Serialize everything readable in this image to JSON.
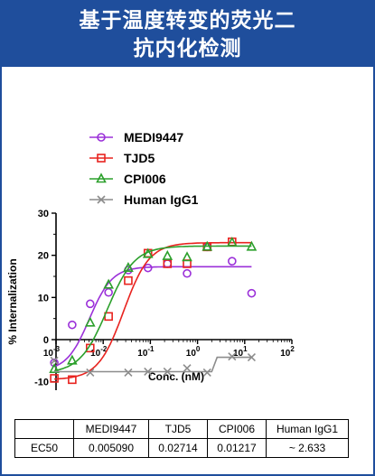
{
  "header": {
    "title_line1": "基于温度转变的荧光二",
    "title_line2": "抗内化检测"
  },
  "colors": {
    "header_bg": "#1f4e9c",
    "MEDI9447": "#9b30d9",
    "TJD5": "#e8231f",
    "CPI006": "#2ca02c",
    "Human IgG1": "#8c8c8c"
  },
  "chart_data": {
    "type": "scatter",
    "xscale": "log",
    "xlabel": "Conc. (nM)",
    "ylabel": "% Internalization",
    "xlim": [
      0.001,
      100
    ],
    "ylim": [
      -12,
      30
    ],
    "x_ticks": [
      {
        "value": 0.001,
        "base": "10",
        "exp": "-3"
      },
      {
        "value": 0.01,
        "base": "10",
        "exp": "-2"
      },
      {
        "value": 0.1,
        "base": "10",
        "exp": "-1"
      },
      {
        "value": 1,
        "base": "10",
        "exp": "0"
      },
      {
        "value": 10,
        "base": "10",
        "exp": "1"
      },
      {
        "value": 100,
        "base": "10",
        "exp": "2"
      }
    ],
    "y_ticks": [
      -10,
      0,
      10,
      20,
      30
    ],
    "legend_position": "top",
    "series": [
      {
        "name": "MEDI9447",
        "marker": "circle",
        "points": [
          [
            0.00092,
            -5.5
          ],
          [
            0.0022,
            3.5
          ],
          [
            0.0053,
            8.5
          ],
          [
            0.013,
            11.2
          ],
          [
            0.034,
            16.5
          ],
          [
            0.089,
            17
          ],
          [
            0.23,
            18
          ],
          [
            0.6,
            15.7
          ],
          [
            1.6,
            22
          ],
          [
            5.4,
            18.6
          ],
          [
            14,
            11
          ]
        ],
        "fit": {
          "bottom": -7.5,
          "top": 17.3,
          "ec50": 0.00509,
          "hill": 1.8
        }
      },
      {
        "name": "TJD5",
        "marker": "square",
        "points": [
          [
            0.00092,
            -9.2
          ],
          [
            0.0022,
            -9.5
          ],
          [
            0.0053,
            -2
          ],
          [
            0.013,
            5.5
          ],
          [
            0.034,
            14
          ],
          [
            0.089,
            20.5
          ],
          [
            0.23,
            18
          ],
          [
            0.6,
            18
          ],
          [
            1.6,
            22
          ],
          [
            5.4,
            23.2
          ]
        ],
        "fit": {
          "bottom": -9.5,
          "top": 23,
          "ec50": 0.02714,
          "hill": 1.6
        }
      },
      {
        "name": "CPI006",
        "marker": "triangle",
        "points": [
          [
            0.00092,
            -7
          ],
          [
            0.0022,
            -5
          ],
          [
            0.0053,
            4
          ],
          [
            0.013,
            13
          ],
          [
            0.034,
            17
          ],
          [
            0.089,
            20.3
          ],
          [
            0.23,
            19.8
          ],
          [
            0.6,
            19.5
          ],
          [
            1.6,
            22
          ],
          [
            5.4,
            23
          ],
          [
            14,
            22
          ]
        ],
        "fit": {
          "bottom": -8,
          "top": 22.2,
          "ec50": 0.01217,
          "hill": 1.5
        }
      },
      {
        "name": "Human IgG1",
        "marker": "cross",
        "points": [
          [
            0.00092,
            -5
          ],
          [
            0.0053,
            -7.8
          ],
          [
            0.034,
            -7.8
          ],
          [
            0.089,
            -7.6
          ],
          [
            0.23,
            -7.6
          ],
          [
            0.6,
            -6.8
          ],
          [
            1.6,
            -7.8
          ],
          [
            5.4,
            -4
          ],
          [
            14,
            -4.2
          ]
        ],
        "fit": {
          "type": "step",
          "points": [
            [
              0.00092,
              -7.6
            ],
            [
              2.0,
              -7.6
            ],
            [
              2.6,
              -4.2
            ],
            [
              14,
              -4.2
            ]
          ]
        }
      }
    ]
  },
  "table": {
    "header": [
      "",
      "MEDI9447",
      "TJD5",
      "CPI006",
      "Human IgG1"
    ],
    "rows": [
      [
        "EC50",
        "0.005090",
        "0.02714",
        "0.01217",
        "~ 2.633"
      ]
    ]
  }
}
